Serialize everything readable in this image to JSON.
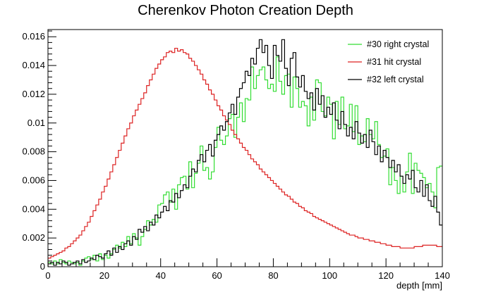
{
  "chart_data": {
    "type": "step-histogram",
    "title": "Cherenkov Photon Creation Depth",
    "xlabel": "depth [mm]",
    "ylabel": "",
    "xlim": [
      0,
      140
    ],
    "ylim": [
      0,
      0.0165
    ],
    "bin_width_mm": 1,
    "legend_position": "top-right",
    "grid": false,
    "x_ticks": [
      "0",
      "20",
      "40",
      "60",
      "80",
      "100",
      "120",
      "140"
    ],
    "y_ticks": [
      "0",
      "0.002",
      "0.004",
      "0.006",
      "0.008",
      "0.01",
      "0.012",
      "0.014",
      "0.016"
    ],
    "series": [
      {
        "name": "#30 right crystal",
        "color": "#33dd33",
        "values": [
          0.0003,
          0.0002,
          0.0004,
          0.0002,
          0.0005,
          0.0003,
          0.0002,
          0.0004,
          0.0003,
          0.0002,
          0.0003,
          0.0001,
          0.0004,
          0.0006,
          0.0007,
          0.0005,
          0.0008,
          0.0004,
          0.0009,
          0.0005,
          0.0008,
          0.0006,
          0.0009,
          0.0012,
          0.0015,
          0.0013,
          0.0017,
          0.0014,
          0.0021,
          0.0016,
          0.0023,
          0.002,
          0.0015,
          0.0021,
          0.0026,
          0.0032,
          0.0029,
          0.0033,
          0.0031,
          0.0043,
          0.0044,
          0.005,
          0.0052,
          0.0045,
          0.0054,
          0.004,
          0.0057,
          0.0062,
          0.0063,
          0.0054,
          0.0073,
          0.0055,
          0.0065,
          0.0072,
          0.0084,
          0.0067,
          0.0069,
          0.0061,
          0.0066,
          0.0083,
          0.0097,
          0.0088,
          0.0085,
          0.0091,
          0.0103,
          0.0106,
          0.009,
          0.0104,
          0.0114,
          0.0101,
          0.0117,
          0.0116,
          0.0139,
          0.0124,
          0.0133,
          0.0137,
          0.0139,
          0.013,
          0.0124,
          0.0127,
          0.0122,
          0.0146,
          0.0129,
          0.012,
          0.0133,
          0.0134,
          0.0111,
          0.0132,
          0.0124,
          0.0111,
          0.0115,
          0.0112,
          0.0098,
          0.0118,
          0.0102,
          0.013,
          0.0128,
          0.0108,
          0.0105,
          0.0118,
          0.0113,
          0.0089,
          0.0115,
          0.0099,
          0.0118,
          0.0096,
          0.0098,
          0.0113,
          0.0094,
          0.0112,
          0.0085,
          0.0091,
          0.0087,
          0.0103,
          0.0092,
          0.0089,
          0.0101,
          0.0085,
          0.0076,
          0.0077,
          0.0082,
          0.0057,
          0.0069,
          0.006,
          0.0051,
          0.0063,
          0.0052,
          0.0066,
          0.0079,
          0.0051,
          0.0072,
          0.0067,
          0.0065,
          0.0062,
          0.0055,
          0.0058,
          0.0052,
          0.0041,
          0.0069,
          0.007
        ]
      },
      {
        "name": "#31 hit crystal",
        "color": "#dd2222",
        "values": [
          0.0006,
          0.0007,
          0.0008,
          0.0009,
          0.001,
          0.0011,
          0.0013,
          0.0014,
          0.0016,
          0.0018,
          0.002,
          0.0022,
          0.0025,
          0.0028,
          0.0031,
          0.0035,
          0.0039,
          0.0043,
          0.0047,
          0.0052,
          0.0056,
          0.0061,
          0.0066,
          0.0071,
          0.0076,
          0.0081,
          0.0086,
          0.0091,
          0.0096,
          0.01,
          0.0105,
          0.0109,
          0.0113,
          0.0117,
          0.0121,
          0.0126,
          0.013,
          0.0134,
          0.0138,
          0.0141,
          0.0144,
          0.0146,
          0.0149,
          0.015,
          0.0149,
          0.0152,
          0.015,
          0.0151,
          0.0149,
          0.0148,
          0.0145,
          0.0143,
          0.014,
          0.0137,
          0.0134,
          0.013,
          0.0127,
          0.0123,
          0.012,
          0.0116,
          0.0112,
          0.0109,
          0.0105,
          0.0102,
          0.0099,
          0.0095,
          0.0092,
          0.0089,
          0.0086,
          0.0083,
          0.0081,
          0.0078,
          0.0075,
          0.0073,
          0.0071,
          0.0068,
          0.0066,
          0.0064,
          0.0062,
          0.006,
          0.0058,
          0.0056,
          0.0054,
          0.0052,
          0.005,
          0.0049,
          0.0047,
          0.0045,
          0.0044,
          0.0042,
          0.0041,
          0.0039,
          0.0038,
          0.0037,
          0.0035,
          0.0034,
          0.0033,
          0.0032,
          0.0031,
          0.003,
          0.0029,
          0.0028,
          0.0027,
          0.0026,
          0.0025,
          0.0024,
          0.0023,
          0.0022,
          0.0022,
          0.0021,
          0.002,
          0.002,
          0.0019,
          0.0019,
          0.0018,
          0.0018,
          0.0017,
          0.0017,
          0.0016,
          0.0016,
          0.0015,
          0.0015,
          0.0014,
          0.0014,
          0.0014,
          0.0013,
          0.0013,
          0.0013,
          0.0013,
          0.0013,
          0.0014,
          0.0014,
          0.0014,
          0.0015,
          0.0015,
          0.0015,
          0.0015,
          0.0015,
          0.0014,
          0.0014
        ]
      },
      {
        "name": "#32 left crystal",
        "color": "#000000",
        "values": [
          0.0002,
          0.0003,
          0.0001,
          0.0003,
          0.0002,
          0.0004,
          0.0003,
          0.0001,
          0.0002,
          0.0003,
          0.0004,
          0.0002,
          0.0005,
          0.0003,
          0.0004,
          0.0006,
          0.0005,
          0.0008,
          0.0007,
          0.0006,
          0.0009,
          0.0011,
          0.0008,
          0.0013,
          0.001,
          0.0014,
          0.0012,
          0.0016,
          0.0018,
          0.0015,
          0.0021,
          0.0019,
          0.0026,
          0.0024,
          0.0028,
          0.0025,
          0.0031,
          0.0029,
          0.0036,
          0.0034,
          0.0038,
          0.0042,
          0.0039,
          0.0046,
          0.0045,
          0.0051,
          0.0048,
          0.0053,
          0.0057,
          0.0055,
          0.0063,
          0.0068,
          0.0066,
          0.0074,
          0.0078,
          0.0073,
          0.0081,
          0.0085,
          0.0077,
          0.0088,
          0.0092,
          0.0098,
          0.0095,
          0.0101,
          0.0107,
          0.0113,
          0.0106,
          0.0118,
          0.0124,
          0.0128,
          0.0136,
          0.0133,
          0.0145,
          0.0141,
          0.0152,
          0.0158,
          0.0149,
          0.0154,
          0.014,
          0.0131,
          0.0154,
          0.0147,
          0.0143,
          0.0158,
          0.0138,
          0.0126,
          0.0145,
          0.0149,
          0.0132,
          0.0125,
          0.0133,
          0.0122,
          0.0117,
          0.0121,
          0.0109,
          0.0124,
          0.0113,
          0.0119,
          0.0104,
          0.0111,
          0.0106,
          0.0114,
          0.0102,
          0.0096,
          0.0108,
          0.0099,
          0.0091,
          0.0097,
          0.0089,
          0.0101,
          0.0093,
          0.0086,
          0.0092,
          0.0083,
          0.0095,
          0.0087,
          0.0078,
          0.0084,
          0.0073,
          0.0081,
          0.0076,
          0.0069,
          0.0074,
          0.0066,
          0.0071,
          0.0063,
          0.0058,
          0.0064,
          0.0061,
          0.0067,
          0.0055,
          0.0052,
          0.006,
          0.0049,
          0.0057,
          0.0046,
          0.0042,
          0.0049,
          0.0038,
          0.0029
        ]
      }
    ]
  }
}
